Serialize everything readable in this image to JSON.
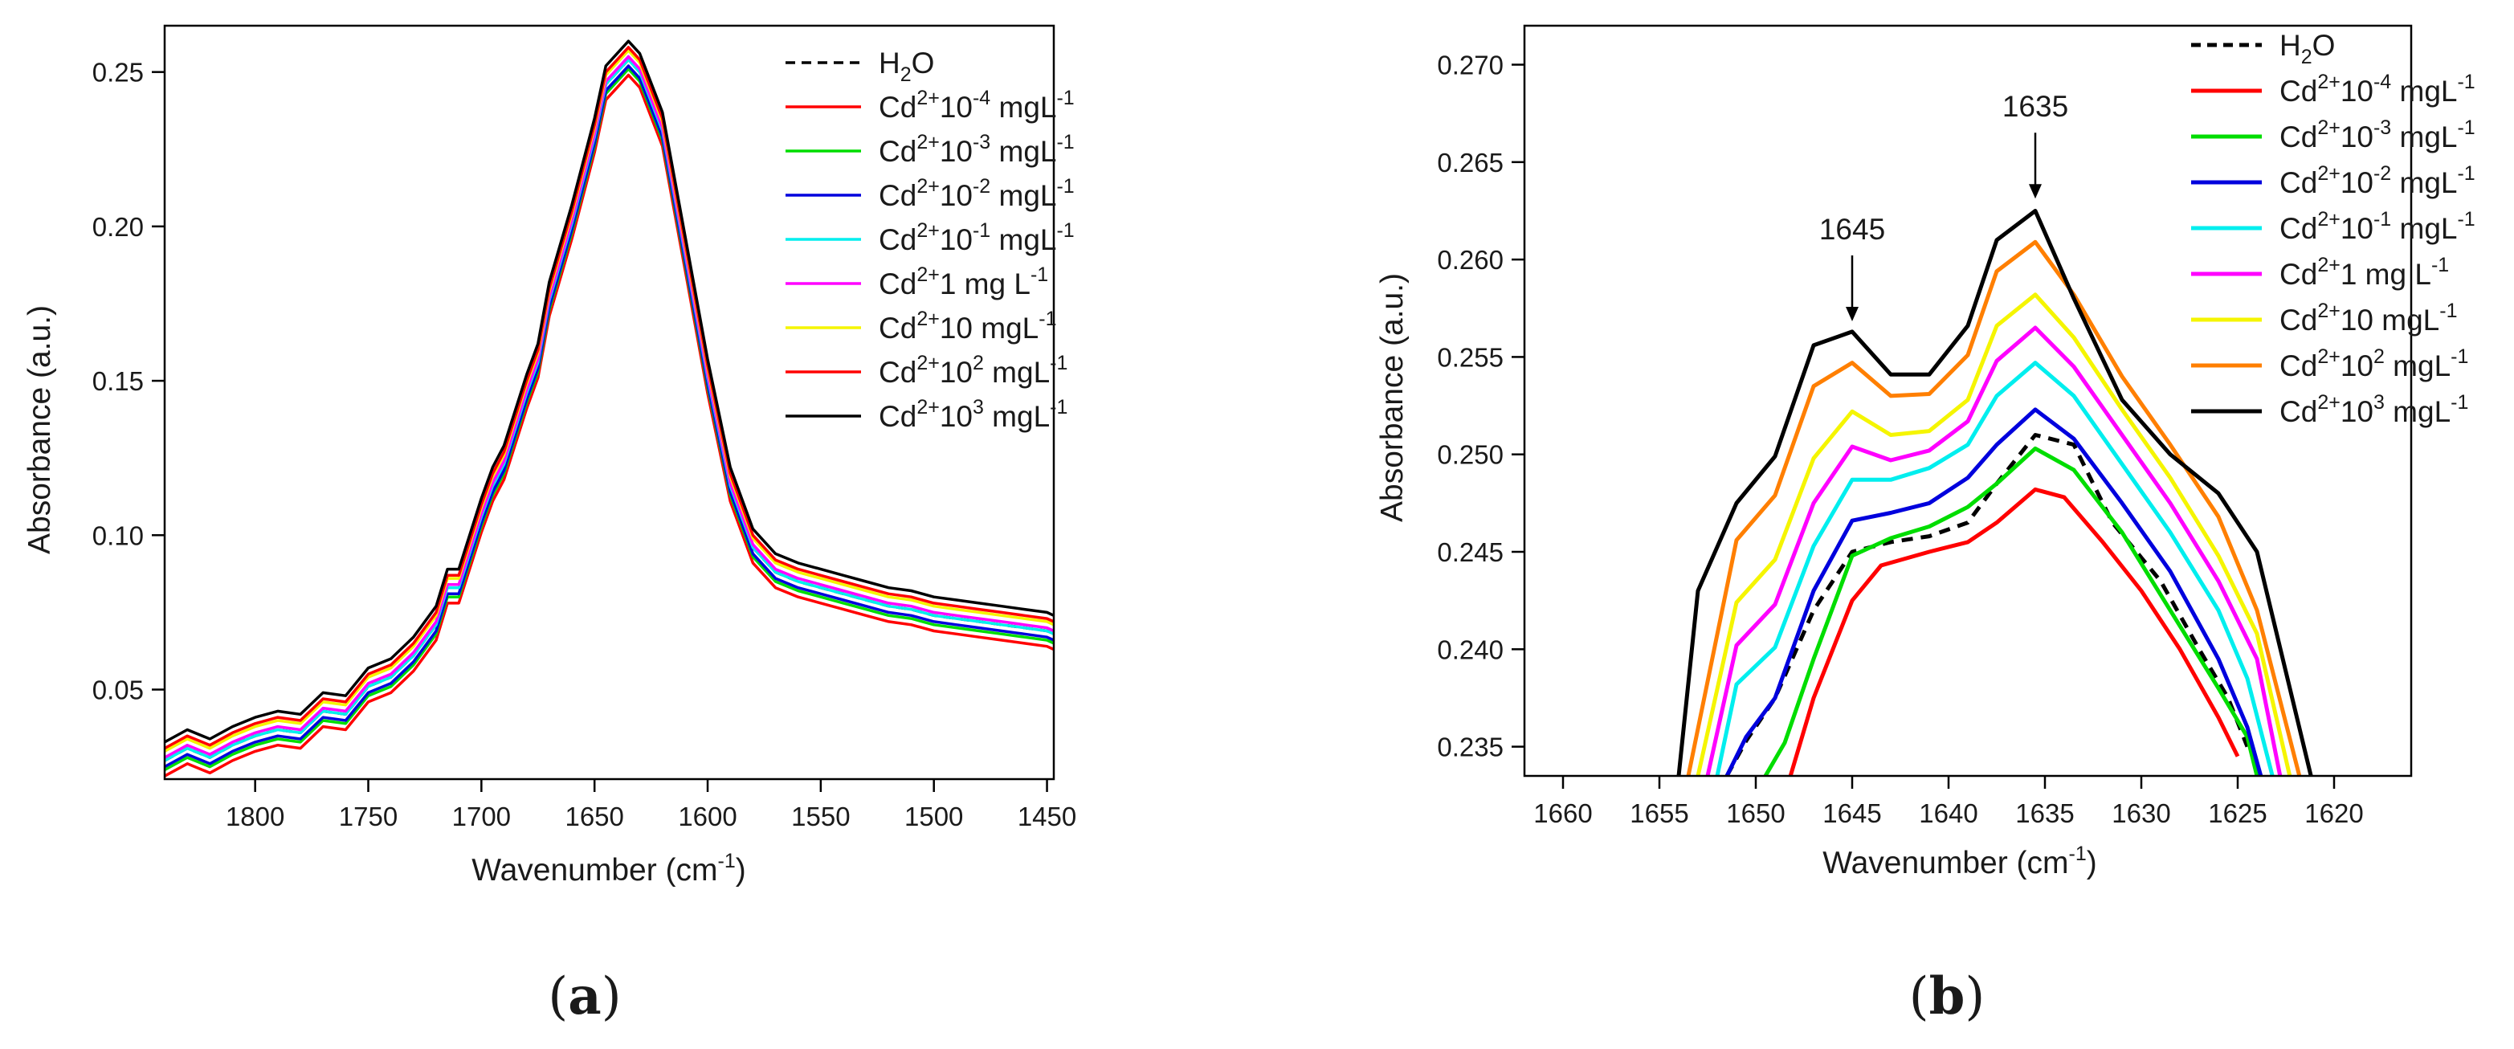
{
  "figure": {
    "panel_labels": [
      {
        "open": "(",
        "letter": "a",
        "close": ")"
      },
      {
        "open": "(",
        "letter": "b",
        "close": ")"
      }
    ]
  },
  "legend": [
    {
      "pre": "H",
      "sub": "2",
      "post": "O",
      "sup1": "",
      "mid": "",
      "sup2": "",
      "color": "#000000",
      "dash": true
    },
    {
      "pre": "Cd",
      "sub": "",
      "post": "",
      "sup1": "2+",
      "mid": "10",
      "sup2": "-4",
      "tail": " mgL",
      "sup3": "-1",
      "color": "#ff0000",
      "dash": false
    },
    {
      "pre": "Cd",
      "sub": "",
      "post": "",
      "sup1": "2+",
      "mid": "10",
      "sup2": "-3",
      "tail": " mgL",
      "sup3": "-1",
      "color": "#00dd00",
      "dash": false
    },
    {
      "pre": "Cd",
      "sub": "",
      "post": "",
      "sup1": "2+",
      "mid": "10",
      "sup2": "-2",
      "tail": " mgL",
      "sup3": "-1",
      "color": "#0000dd",
      "dash": false
    },
    {
      "pre": "Cd",
      "sub": "",
      "post": "",
      "sup1": "2+",
      "mid": "10",
      "sup2": "-1",
      "tail": " mgL",
      "sup3": "-1",
      "color": "#00eeee",
      "dash": false
    },
    {
      "pre": "Cd",
      "sub": "",
      "post": "",
      "sup1": "2+",
      "mid": "1 mg L",
      "sup2": "-1",
      "tail": "",
      "sup3": "",
      "color": "#ff00ff",
      "dash": false
    },
    {
      "pre": "Cd",
      "sub": "",
      "post": "",
      "sup1": "2+",
      "mid": "10 mgL",
      "sup2": "-1",
      "tail": "",
      "sup3": "",
      "color": "#f5f500",
      "dash": false
    },
    {
      "pre": "Cd",
      "sub": "",
      "post": "",
      "sup1": "2+",
      "mid": "10",
      "sup2": "2",
      "tail": " mgL",
      "sup3": "-1",
      "color": "#ff7f00",
      "dash": false,
      "color_a": "#ff0000"
    },
    {
      "pre": "Cd",
      "sub": "",
      "post": "",
      "sup1": "2+",
      "mid": "10",
      "sup2": "3",
      "tail": " mgL",
      "sup3": "-1",
      "color": "#000000",
      "dash": false
    }
  ],
  "chart_data": [
    {
      "panel": "a",
      "type": "line",
      "xlabel": "Wavenumber (cm",
      "xlabel_sup": "-1",
      "xlabel_close": ")",
      "ylabel": "Absorbance (a.u.)",
      "xlim": [
        1840,
        1447
      ],
      "ylim": [
        0.021,
        0.265
      ],
      "xticks": [
        1800,
        1750,
        1700,
        1650,
        1600,
        1550,
        1500,
        1450
      ],
      "yticks": [
        0.05,
        0.1,
        0.15,
        0.2,
        0.25
      ],
      "ytick_labels": [
        "0.05",
        "0.10",
        "0.15",
        "0.20",
        "0.25"
      ],
      "x": [
        1840,
        1830,
        1820,
        1810,
        1800,
        1790,
        1780,
        1770,
        1760,
        1750,
        1740,
        1730,
        1720,
        1715,
        1710,
        1700,
        1695,
        1690,
        1680,
        1675,
        1670,
        1660,
        1650,
        1645,
        1640,
        1635,
        1630,
        1620,
        1610,
        1600,
        1590,
        1580,
        1570,
        1560,
        1550,
        1540,
        1530,
        1520,
        1510,
        1500,
        1490,
        1480,
        1470,
        1460,
        1450,
        1447
      ],
      "base_series": [
        0.026,
        0.03,
        0.027,
        0.031,
        0.034,
        0.036,
        0.035,
        0.042,
        0.041,
        0.05,
        0.053,
        0.06,
        0.07,
        0.082,
        0.082,
        0.105,
        0.115,
        0.122,
        0.145,
        0.155,
        0.175,
        0.2,
        0.228,
        0.245,
        0.249,
        0.253,
        0.249,
        0.23,
        0.19,
        0.15,
        0.115,
        0.095,
        0.087,
        0.084,
        0.082,
        0.08,
        0.078,
        0.076,
        0.075,
        0.073,
        0.072,
        0.071,
        0.07,
        0.069,
        0.068,
        0.067
      ],
      "offsets": [
        {
          "name": "H2O",
          "offset": 0.001
        },
        {
          "name": "Cd2+ 10^-4 mgL-1",
          "offset": -0.004
        },
        {
          "name": "Cd2+ 10^-3 mgL-1",
          "offset": -0.002
        },
        {
          "name": "Cd2+ 10^-2 mgL-1",
          "offset": -0.001
        },
        {
          "name": "Cd2+ 10^-1 mgL-1",
          "offset": 0.001
        },
        {
          "name": "Cd2+ 1 mg L-1",
          "offset": 0.002
        },
        {
          "name": "Cd2+ 10 mgL-1",
          "offset": 0.004
        },
        {
          "name": "Cd2+ 10^2 mgL-1",
          "offset": 0.005
        },
        {
          "name": "Cd2+ 10^3 mgL-1",
          "offset": 0.007
        }
      ]
    },
    {
      "panel": "b",
      "type": "line",
      "xlabel": "Wavenumber (cm",
      "xlabel_sup": "-1",
      "xlabel_close": ")",
      "ylabel": "Absorbance (a.u.)",
      "xlim": [
        1662,
        1616
      ],
      "ylim": [
        0.2335,
        0.272
      ],
      "xticks": [
        1660,
        1655,
        1650,
        1645,
        1640,
        1635,
        1630,
        1625,
        1620
      ],
      "yticks": [
        0.235,
        0.24,
        0.245,
        0.25,
        0.255,
        0.26,
        0.265,
        0.27
      ],
      "ytick_labels": [
        "0.235",
        "0.240",
        "0.245",
        "0.250",
        "0.255",
        "0.260",
        "0.265",
        "0.270"
      ],
      "annotations": [
        {
          "text": "1645",
          "x": 1645,
          "y": 0.2565
        },
        {
          "text": "1635",
          "x": 1635.5,
          "y": 0.2628
        }
      ],
      "series": [
        {
          "name": "H2O",
          "x": [
            1651.5,
            1650.5,
            1649,
            1647,
            1645,
            1643,
            1641,
            1639,
            1637.5,
            1635.5,
            1633.5,
            1631.5,
            1629,
            1627,
            1625.5,
            1624.5
          ],
          "y": [
            0.2335,
            0.2353,
            0.2375,
            0.242,
            0.245,
            0.2455,
            0.2458,
            0.2465,
            0.2485,
            0.251,
            0.2505,
            0.2465,
            0.2435,
            0.24,
            0.2375,
            0.235
          ]
        },
        {
          "name": "Cd2+ 10^-4 mgL-1",
          "x": [
            1648.2,
            1647,
            1645,
            1643.5,
            1641,
            1639,
            1637.5,
            1635.5,
            1634,
            1632,
            1630,
            1628,
            1626,
            1625
          ],
          "y": [
            0.2335,
            0.2375,
            0.2425,
            0.2443,
            0.245,
            0.2455,
            0.2465,
            0.2482,
            0.2478,
            0.2455,
            0.243,
            0.24,
            0.2365,
            0.2345
          ]
        },
        {
          "name": "Cd2+ 10^-3 mgL-1",
          "x": [
            1649.5,
            1648.5,
            1647,
            1645,
            1643,
            1641,
            1639,
            1637.5,
            1635.5,
            1633.5,
            1631,
            1628.5,
            1626,
            1624.5,
            1624
          ],
          "y": [
            0.2335,
            0.2352,
            0.2395,
            0.2448,
            0.2457,
            0.2463,
            0.2473,
            0.2485,
            0.2503,
            0.2492,
            0.246,
            0.242,
            0.238,
            0.2355,
            0.2335
          ]
        },
        {
          "name": "Cd2+ 10^-2 mgL-1",
          "x": [
            1651.5,
            1650.5,
            1649,
            1647,
            1645,
            1643,
            1641,
            1639,
            1637.5,
            1635.5,
            1633.5,
            1631,
            1628.5,
            1626,
            1624.5,
            1623.8
          ],
          "y": [
            0.2335,
            0.2355,
            0.2375,
            0.243,
            0.2466,
            0.247,
            0.2475,
            0.2488,
            0.2505,
            0.2523,
            0.2508,
            0.2475,
            0.244,
            0.2395,
            0.236,
            0.2335
          ]
        },
        {
          "name": "Cd2+ 10^-1 mgL-1",
          "x": [
            1652,
            1651,
            1649,
            1647,
            1645,
            1643,
            1641,
            1639,
            1637.5,
            1635.5,
            1633.5,
            1631,
            1628.5,
            1626,
            1624.5,
            1623.2
          ],
          "y": [
            0.2335,
            0.2382,
            0.2401,
            0.2453,
            0.2487,
            0.2487,
            0.2493,
            0.2505,
            0.253,
            0.2547,
            0.253,
            0.2495,
            0.246,
            0.242,
            0.2385,
            0.2335
          ]
        },
        {
          "name": "Cd2+ 1 mg L-1",
          "x": [
            1652.5,
            1651,
            1649,
            1647,
            1645,
            1643,
            1641,
            1639,
            1637.5,
            1635.5,
            1633.5,
            1631,
            1628.5,
            1626,
            1624,
            1622.8
          ],
          "y": [
            0.2335,
            0.2402,
            0.2423,
            0.2475,
            0.2504,
            0.2497,
            0.2502,
            0.2517,
            0.2548,
            0.2565,
            0.2545,
            0.251,
            0.2475,
            0.2435,
            0.2395,
            0.2335
          ]
        },
        {
          "name": "Cd2+ 10 mgL-1",
          "x": [
            1653,
            1651,
            1649,
            1647,
            1645,
            1643,
            1641,
            1639,
            1637.5,
            1635.5,
            1633.5,
            1631,
            1628.5,
            1626,
            1624,
            1622.3
          ],
          "y": [
            0.2335,
            0.2424,
            0.2446,
            0.2498,
            0.2522,
            0.251,
            0.2512,
            0.2528,
            0.2566,
            0.2582,
            0.256,
            0.2523,
            0.2488,
            0.2448,
            0.2408,
            0.2335
          ]
        },
        {
          "name": "Cd2+ 10^2 mgL-1",
          "x": [
            1653.5,
            1651,
            1649,
            1647,
            1645,
            1643,
            1641,
            1639,
            1637.5,
            1635.5,
            1633.5,
            1631,
            1628.5,
            1626,
            1624,
            1621.8
          ],
          "y": [
            0.2335,
            0.2456,
            0.2479,
            0.2535,
            0.2547,
            0.253,
            0.2531,
            0.2551,
            0.2594,
            0.2609,
            0.2582,
            0.254,
            0.2505,
            0.2468,
            0.242,
            0.2335
          ]
        },
        {
          "name": "Cd2+ 10^3 mgL-1",
          "x": [
            1654,
            1653,
            1651,
            1649,
            1647,
            1645,
            1643,
            1641,
            1639,
            1637.5,
            1635.5,
            1633.5,
            1631,
            1628.5,
            1626,
            1624,
            1621.2
          ],
          "y": [
            0.2335,
            0.243,
            0.2475,
            0.2499,
            0.2556,
            0.2563,
            0.2541,
            0.2541,
            0.2566,
            0.261,
            0.2625,
            0.258,
            0.2528,
            0.25,
            0.248,
            0.245,
            0.2335
          ]
        }
      ]
    }
  ]
}
